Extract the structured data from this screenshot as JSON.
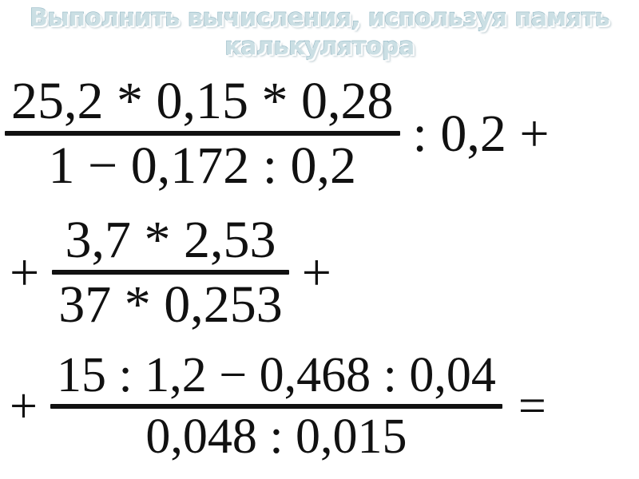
{
  "slide": {
    "title": {
      "line1": "Выполнить вычисления, используя память",
      "line2": "калькулятора",
      "full_text": "Выполнить вычисления, используя память калькулятора"
    },
    "expression": {
      "line1": {
        "fraction": {
          "numerator": "25,2 * 0,15 * 0,28",
          "denominator": "1 − 0,172 : 0,2"
        },
        "after": ": 0,2 +"
      },
      "line2": {
        "before": "+",
        "fraction": {
          "numerator": "3,7 * 2,53",
          "denominator": "37 * 0,253"
        },
        "after": "+"
      },
      "line3": {
        "before": "+",
        "fraction": {
          "numerator": "15 : 1,2 − 0,468 : 0,04",
          "denominator": "0,048 : 0,015"
        },
        "after": "="
      }
    }
  },
  "colors": {
    "title_fill": "#cbdfe4",
    "title_outline": "#96b9c6",
    "title_shadow": "#9fb4bc",
    "math_ink": "#111111",
    "page_bg": "#ffffff"
  }
}
